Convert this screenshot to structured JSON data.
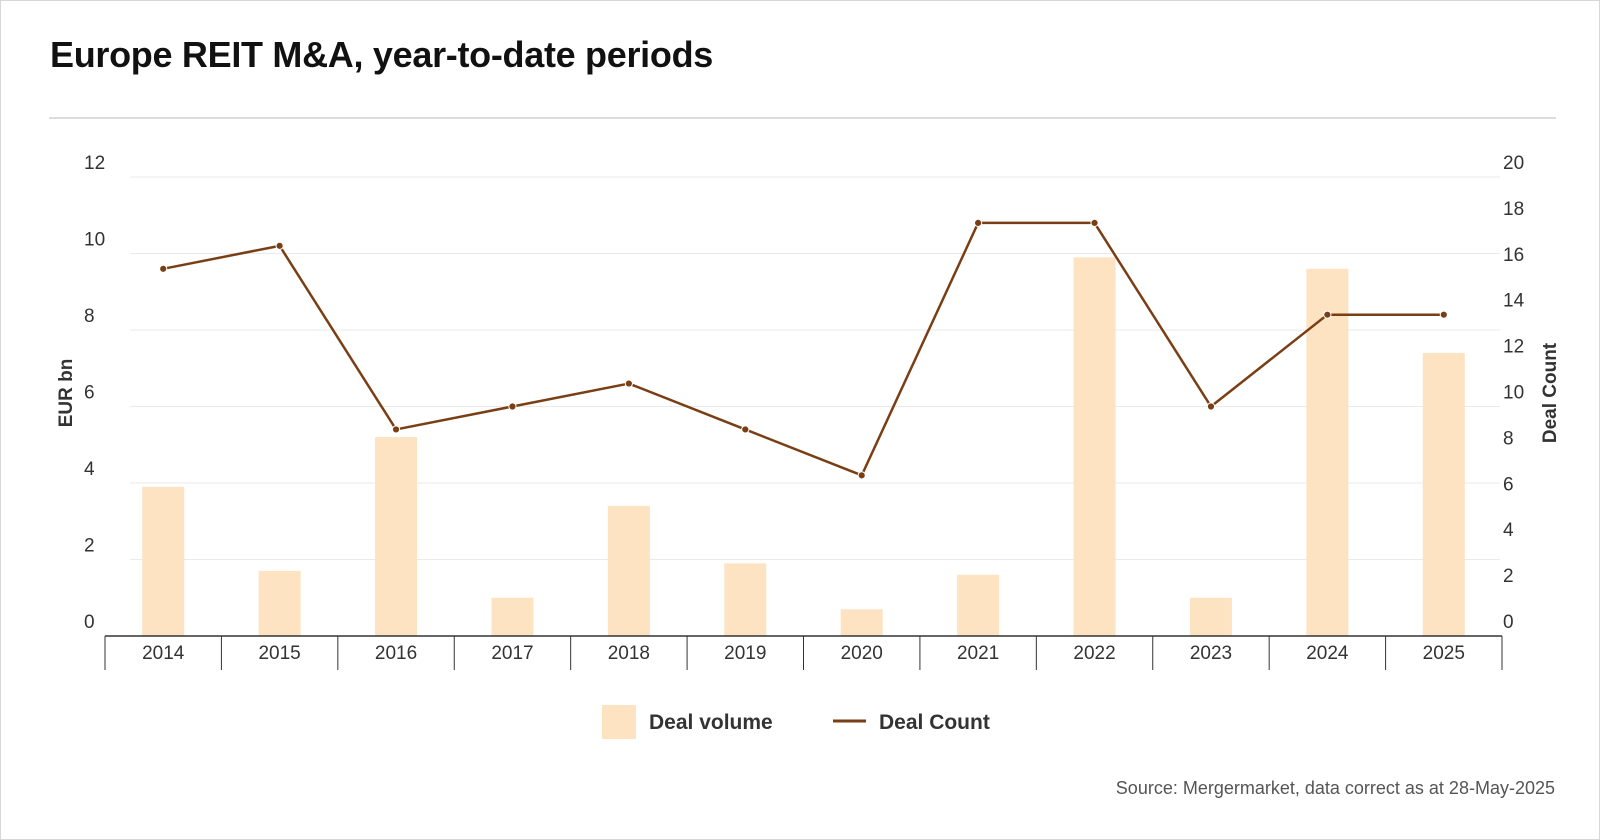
{
  "title": "Europe REIT M&A, year-to-date periods",
  "source": "Source: Mergermarket, data correct as at 28-May-2025",
  "colors": {
    "bar": "#fde3c2",
    "line": "#7a3e14",
    "grid": "#eaeaea",
    "axis": "#333333",
    "text": "#333333"
  },
  "chart_data": {
    "type": "bar",
    "categories": [
      "2014",
      "2015",
      "2016",
      "2017",
      "2018",
      "2019",
      "2020",
      "2021",
      "2022",
      "2023",
      "2024",
      "2025"
    ],
    "series": [
      {
        "name": "Deal volume",
        "type": "bar",
        "axis": "left",
        "values": [
          3.9,
          1.7,
          5.2,
          1.0,
          3.4,
          1.9,
          0.7,
          1.6,
          9.9,
          1.0,
          9.6,
          7.4
        ]
      },
      {
        "name": "Deal Count",
        "type": "line",
        "axis": "right",
        "values": [
          16,
          17,
          9,
          10,
          11,
          9,
          7,
          18,
          18,
          10,
          14,
          14
        ]
      }
    ],
    "ylabel": "EUR bn",
    "ylabel_right": "Deal Count",
    "ylim": [
      0,
      12
    ],
    "ylim_right": [
      0,
      20
    ],
    "yticks": [
      "0",
      "2",
      "4",
      "6",
      "8",
      "10",
      "12"
    ],
    "yticks_right": [
      "0",
      "2",
      "4",
      "6",
      "8",
      "10",
      "12",
      "14",
      "16",
      "18",
      "20"
    ],
    "grid": true,
    "legend_position": "bottom-center"
  }
}
